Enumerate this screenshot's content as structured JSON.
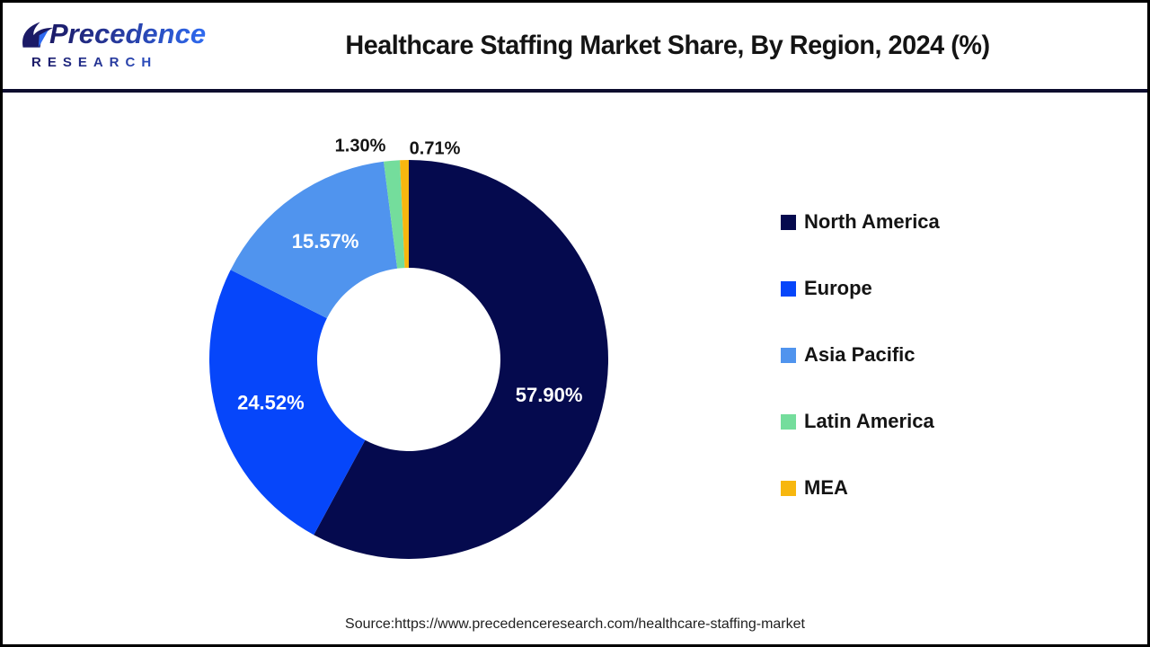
{
  "logo": {
    "brand": "Precedence",
    "sub": "RESEARCH"
  },
  "title": "Healthcare Staffing Market Share, By Region, 2024 (%)",
  "source": "Source:https://www.precedenceresearch.com/healthcare-staffing-market",
  "chart_data": {
    "type": "pie",
    "subtype": "donut",
    "title": "Healthcare Staffing Market Share, By Region, 2024 (%)",
    "categories": [
      "North America",
      "Europe",
      "Asia Pacific",
      "Latin America",
      "MEA"
    ],
    "values": [
      57.9,
      24.52,
      15.57,
      1.3,
      0.71
    ],
    "labels": [
      "57.90%",
      "24.52%",
      "15.57%",
      "1.30%",
      "0.71%"
    ],
    "colors": [
      "#050a4e",
      "#0646fa",
      "#5094ee",
      "#74dd9c",
      "#f7b70f"
    ],
    "legend_position": "right",
    "start_angle_deg": 0,
    "direction": "clockwise",
    "inner_radius_ratio": 0.46
  }
}
